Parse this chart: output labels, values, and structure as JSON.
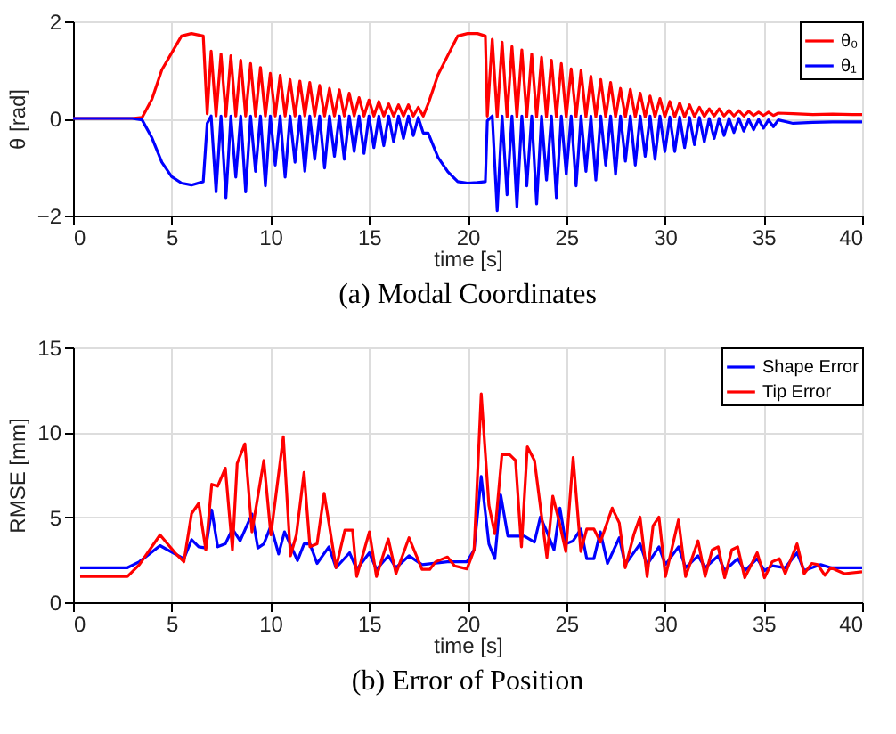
{
  "chart_data": [
    {
      "type": "line",
      "title": "(a) Modal Coordinates",
      "xlabel": "time [s]",
      "ylabel": "θ [rad]",
      "xlim": [
        0,
        40
      ],
      "ylim": [
        -2,
        2
      ],
      "xticks": [
        0,
        5,
        10,
        15,
        20,
        25,
        30,
        35,
        40
      ],
      "yticks": [
        -2,
        0,
        2
      ],
      "grid": true,
      "legend": "top right",
      "marker": "none",
      "line_style": "solid",
      "x": [
        0,
        3,
        3.5,
        4,
        4.5,
        5,
        5.5,
        6,
        6.6,
        6.8,
        7,
        7.25,
        7.5,
        7.75,
        8,
        8.25,
        8.5,
        8.75,
        9,
        9.25,
        9.5,
        9.75,
        10,
        10.25,
        10.5,
        10.75,
        11,
        11.25,
        11.5,
        11.75,
        12,
        12.25,
        12.5,
        12.75,
        13,
        13.25,
        13.5,
        13.75,
        14,
        14.25,
        14.5,
        14.75,
        15,
        15.25,
        15.5,
        15.75,
        16,
        16.25,
        16.5,
        16.75,
        17,
        17.25,
        17.5,
        17.75,
        18,
        18.5,
        19,
        19.5,
        20,
        20.5,
        20.9,
        21,
        21.25,
        21.5,
        21.75,
        22,
        22.25,
        22.5,
        22.75,
        23,
        23.25,
        23.5,
        23.75,
        24,
        24.25,
        24.5,
        24.75,
        25,
        25.25,
        25.5,
        25.75,
        26,
        26.25,
        26.5,
        26.75,
        27,
        27.25,
        27.5,
        27.75,
        28,
        28.25,
        28.5,
        28.75,
        29,
        29.25,
        29.5,
        29.75,
        30,
        30.25,
        30.5,
        30.75,
        31,
        31.25,
        31.5,
        31.75,
        32,
        32.25,
        32.5,
        32.75,
        33,
        33.25,
        33.5,
        33.75,
        34,
        34.25,
        34.5,
        34.75,
        35,
        35.25,
        35.5,
        35.75,
        36.5,
        37.5,
        38.5,
        39.5,
        40
      ],
      "series": [
        {
          "name": "θ₀",
          "color": "#ff0000",
          "values": [
            0,
            0,
            0.02,
            0.4,
            1.0,
            1.35,
            1.7,
            1.75,
            1.7,
            0.1,
            1.39,
            0.05,
            1.33,
            0.05,
            1.29,
            0.05,
            1.2,
            0.05,
            1.13,
            0.05,
            1.05,
            0.05,
            0.93,
            0.05,
            0.89,
            0.05,
            0.8,
            0.05,
            0.77,
            0.05,
            0.74,
            0.05,
            0.68,
            0.05,
            0.62,
            0.05,
            0.59,
            0.05,
            0.52,
            0.05,
            0.43,
            0.05,
            0.38,
            0.05,
            0.35,
            0.05,
            0.3,
            0.05,
            0.28,
            0.05,
            0.28,
            0.05,
            0.23,
            0.05,
            0.3,
            0.9,
            1.3,
            1.7,
            1.75,
            1.75,
            1.7,
            0.05,
            1.63,
            0.03,
            1.57,
            0.03,
            1.48,
            0.03,
            1.41,
            0.03,
            1.33,
            0.03,
            1.26,
            0.03,
            1.2,
            0.03,
            1.13,
            0.03,
            1.02,
            0.03,
            0.99,
            0.03,
            0.87,
            0.03,
            0.8,
            0.03,
            0.74,
            0.03,
            0.62,
            0.03,
            0.6,
            0.03,
            0.52,
            0.03,
            0.46,
            0.03,
            0.41,
            0.03,
            0.35,
            0.03,
            0.32,
            0.03,
            0.28,
            0.04,
            0.23,
            0.04,
            0.2,
            0.05,
            0.2,
            0.05,
            0.17,
            0.05,
            0.16,
            0.05,
            0.15,
            0.06,
            0.13,
            0.06,
            0.13,
            0.06,
            0.11,
            0.1,
            0.08,
            0.09,
            0.08,
            0.08
          ]
        },
        {
          "name": "θ₁",
          "color": "#0000ff",
          "values": [
            0,
            0,
            -0.03,
            -0.4,
            -0.9,
            -1.2,
            -1.33,
            -1.37,
            -1.3,
            -0.1,
            0.05,
            -1.51,
            0.05,
            -1.63,
            0.05,
            -1.21,
            0.05,
            -1.51,
            0.05,
            -1.09,
            0.05,
            -1.39,
            0.05,
            -0.96,
            0.05,
            -1.21,
            0.05,
            -0.9,
            0.05,
            -1.09,
            0.05,
            -0.84,
            0.05,
            -1.02,
            0.05,
            -0.78,
            0.05,
            -0.84,
            0.05,
            -0.68,
            0.05,
            -0.72,
            0.05,
            -0.6,
            0.05,
            -0.56,
            0.05,
            -0.48,
            0.05,
            -0.41,
            0.05,
            -0.35,
            0.02,
            -0.3,
            -0.3,
            -0.8,
            -1.1,
            -1.3,
            -1.33,
            -1.32,
            -1.3,
            -0.05,
            0.05,
            -1.9,
            0.05,
            -1.57,
            0.05,
            -1.82,
            0.05,
            -1.39,
            0.05,
            -1.76,
            0.05,
            -1.27,
            0.05,
            -1.63,
            0.05,
            -1.15,
            0.05,
            -1.39,
            0.05,
            -1.09,
            0.05,
            -1.27,
            0.05,
            -0.96,
            0.05,
            -1.15,
            0.05,
            -0.88,
            0.05,
            -0.96,
            0.05,
            -0.78,
            0.05,
            -0.84,
            0.05,
            -0.68,
            0.03,
            -0.68,
            0.03,
            -0.6,
            0.02,
            -0.54,
            0.02,
            -0.48,
            0,
            -0.41,
            0,
            -0.35,
            0,
            -0.29,
            0,
            -0.26,
            -0.02,
            -0.23,
            -0.02,
            -0.2,
            -0.03,
            -0.17,
            -0.03,
            -0.1,
            -0.08,
            -0.07,
            -0.07,
            -0.07
          ]
        }
      ]
    },
    {
      "type": "line",
      "title": "(b) Error of Position",
      "xlabel": "time [s]",
      "ylabel": "RMSE [mm]",
      "xlim": [
        0,
        40
      ],
      "ylim": [
        0,
        15
      ],
      "xticks": [
        0,
        5,
        10,
        15,
        20,
        25,
        30,
        35,
        40
      ],
      "yticks": [
        0,
        5,
        10,
        15
      ],
      "grid": true,
      "legend": "top right",
      "marker": "none",
      "line_style": "solid",
      "series": [
        {
          "name": "Shape Error",
          "color": "#0000ff",
          "x": [
            0.36,
            2.76,
            3.36,
            4.41,
            5.17,
            5.62,
            6.01,
            6.37,
            6.73,
            7.03,
            7.33,
            7.72,
            8.08,
            8.47,
            9.07,
            9.37,
            9.67,
            10.03,
            10.42,
            10.72,
            11.38,
            11.71,
            12.01,
            12.37,
            12.97,
            13.33,
            14.02,
            14.38,
            15.02,
            15.38,
            15.98,
            16.37,
            17.03,
            17.69,
            18.98,
            19.97,
            20.33,
            20.69,
            21.08,
            21.38,
            21.68,
            22.04,
            22.88,
            23.39,
            23.69,
            24.02,
            24.38,
            24.68,
            24.98,
            25.35,
            25.74,
            26.04,
            26.4,
            26.73,
            27.09,
            27.69,
            27.99,
            28.74,
            29.1,
            29.7,
            30.03,
            30.69,
            31.05,
            31.68,
            32.04,
            32.7,
            33.03,
            33.69,
            34.05,
            34.68,
            35.05,
            35.44,
            36.1,
            36.7,
            37.06,
            37.9,
            38.41,
            40
          ],
          "values": [
            2.03,
            2.03,
            2.38,
            3.33,
            2.84,
            2.56,
            3.68,
            3.26,
            3.19,
            5.43,
            3.26,
            3.43,
            4.31,
            3.61,
            5.19,
            3.19,
            3.43,
            4.49,
            2.84,
            4.14,
            2.45,
            3.43,
            3.43,
            2.28,
            3.26,
            2.03,
            2.91,
            1.93,
            2.91,
            1.93,
            2.73,
            2.03,
            2.73,
            2.21,
            2.38,
            2.38,
            3.08,
            7.4,
            3.43,
            2.56,
            6.31,
            3.89,
            3.89,
            3.54,
            5.01,
            4.14,
            3.08,
            5.54,
            3.43,
            3.61,
            4.31,
            2.56,
            2.56,
            4.14,
            2.28,
            3.79,
            2.21,
            3.43,
            2.21,
            3.26,
            2.21,
            3.26,
            2.03,
            2.73,
            2.03,
            2.73,
            1.86,
            2.56,
            1.86,
            2.56,
            1.86,
            2.14,
            2.03,
            2.91,
            1.86,
            2.21,
            2.03,
            2.03
          ]
        },
        {
          "name": "Tip Error",
          "color": "#ff0000",
          "x": [
            0.36,
            2.76,
            3.36,
            4.41,
            5.17,
            5.62,
            6.01,
            6.37,
            6.73,
            7.03,
            7.33,
            7.72,
            8.08,
            8.32,
            8.71,
            9.07,
            9.67,
            10.03,
            10.66,
            11.02,
            11.32,
            11.71,
            12.01,
            12.37,
            12.73,
            13.33,
            13.78,
            14.17,
            14.38,
            15.02,
            15.38,
            15.98,
            16.37,
            17.03,
            17.69,
            18.08,
            18.38,
            18.98,
            19.34,
            19.97,
            20.33,
            20.69,
            21.08,
            21.38,
            21.74,
            22.13,
            22.43,
            22.73,
            23.03,
            23.39,
            24.02,
            24.32,
            24.62,
            24.98,
            25.35,
            25.74,
            26.04,
            26.4,
            26.73,
            27.33,
            27.69,
            27.99,
            28.44,
            28.74,
            29.1,
            29.4,
            29.7,
            30.03,
            30.69,
            31.05,
            31.68,
            32.04,
            32.4,
            32.7,
            33.03,
            33.39,
            33.69,
            34.05,
            34.68,
            35.05,
            35.44,
            35.8,
            36.1,
            36.7,
            37.06,
            37.45,
            37.75,
            38.11,
            38.41,
            39.1,
            40
          ],
          "values": [
            1.51,
            1.51,
            2.21,
            3.96,
            2.91,
            2.38,
            5.22,
            5.82,
            3.08,
            6.94,
            6.83,
            7.89,
            3.08,
            8.17,
            9.32,
            4.14,
            8.34,
            3.96,
            9.74,
            2.73,
            3.96,
            7.64,
            3.26,
            3.43,
            6.41,
            2.03,
            4.24,
            4.24,
            1.51,
            4.14,
            1.51,
            3.72,
            1.68,
            3.79,
            1.93,
            1.93,
            2.38,
            2.66,
            2.14,
            1.96,
            3.08,
            12.27,
            5.71,
            4.03,
            8.69,
            8.69,
            8.34,
            3.26,
            9.15,
            8.34,
            2.63,
            6.24,
            4.84,
            2.98,
            8.52,
            2.98,
            4.31,
            4.31,
            3.54,
            5.54,
            4.66,
            2.03,
            4.03,
            5.01,
            1.51,
            4.49,
            5.01,
            1.51,
            4.84,
            1.51,
            3.61,
            1.51,
            3.08,
            3.26,
            1.44,
            3.08,
            3.26,
            1.44,
            2.91,
            1.44,
            2.38,
            2.56,
            1.68,
            3.43,
            1.68,
            2.28,
            2.21,
            1.58,
            2.03,
            1.68,
            1.79
          ]
        }
      ]
    }
  ]
}
